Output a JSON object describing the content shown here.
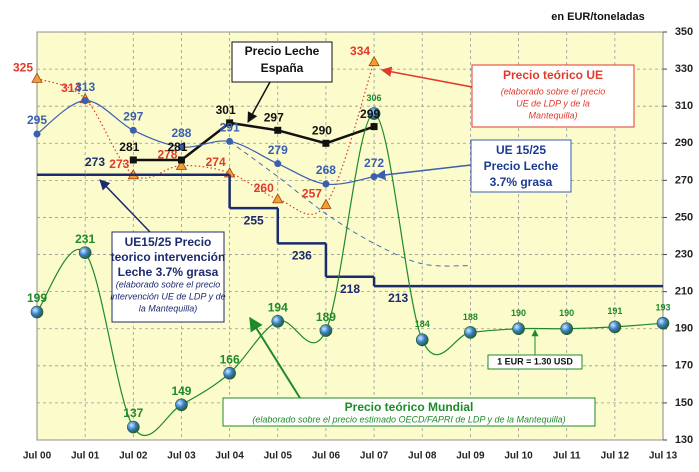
{
  "chart_data": {
    "type": "line",
    "categories": [
      "Jul 00",
      "Jul 01",
      "Jul 02",
      "Jul 03",
      "Jul 04",
      "Jul 05",
      "Jul 06",
      "Jul 07",
      "Jul 08",
      "Jul 09",
      "Jul 10",
      "Jul 11",
      "Jul 12",
      "Jul 13"
    ],
    "ylim": [
      130,
      350
    ],
    "yticks": [
      130,
      150,
      170,
      190,
      210,
      230,
      250,
      270,
      290,
      310,
      330,
      350
    ],
    "grid": true,
    "series": [
      {
        "color": "#e03a2a",
        "style": "dotted-smooth",
        "marker": "triangle",
        "values": [
          325,
          314,
          273,
          278,
          274,
          260,
          257,
          334,
          null,
          null,
          null,
          null,
          null,
          null
        ]
      },
      {
        "color": "#111111",
        "style": "solid",
        "marker": "square",
        "values": [
          null,
          null,
          281,
          281,
          301,
          297,
          290,
          299,
          null,
          null,
          null,
          null,
          null,
          null
        ]
      },
      {
        "color": "#3a5fb0",
        "style": "smooth",
        "marker": "circle",
        "values": [
          295,
          313,
          297,
          288,
          291,
          279,
          268,
          272,
          null,
          null,
          null,
          null,
          null,
          null
        ]
      },
      {
        "color": "#3a5fb0",
        "style": "dashed-smooth",
        "marker": "none",
        "values": [
          null,
          null,
          null,
          null,
          291,
          272,
          252,
          236,
          225,
          224,
          null,
          null,
          null,
          null
        ]
      },
      {
        "color": "#1c2b6e",
        "style": "step",
        "marker": "none",
        "values": [
          273,
          273,
          273,
          273,
          255,
          236,
          218,
          213,
          213,
          213,
          213,
          213,
          213,
          213
        ]
      },
      {
        "color": "#1f8a2a",
        "style": "smooth",
        "marker": "globe",
        "values": [
          199,
          231,
          137,
          149,
          166,
          194,
          189,
          306,
          184,
          188,
          190,
          190,
          191,
          193
        ]
      }
    ],
    "annotations": [
      {
        "lines": [
          "en EUR/toneladas"
        ]
      },
      {
        "lines": [
          "Precio Leche",
          "España"
        ]
      },
      {
        "lines": [
          "Precio teórico UE",
          "(elaborado sobre el precio",
          "UE de LDP y de la",
          "Mantequilla)"
        ]
      },
      {
        "lines": [
          "UE 15/25",
          "Precio Leche",
          "3.7% grasa"
        ]
      },
      {
        "lines": [
          "UE15/25 Precio",
          "teorico intervención",
          "Leche 3.7% grasa",
          "(elaborado sobre el precio",
          "intervención UE de LDP y de",
          "la Mantequilla)"
        ]
      },
      {
        "lines": [
          "1 EUR = 1.30 USD"
        ]
      },
      {
        "lines": [
          "Precio teórico Mundial",
          "(elaborado sobre el precio estimado OECD/FAPRI de LDP y de la Mantequilla)"
        ]
      }
    ]
  }
}
